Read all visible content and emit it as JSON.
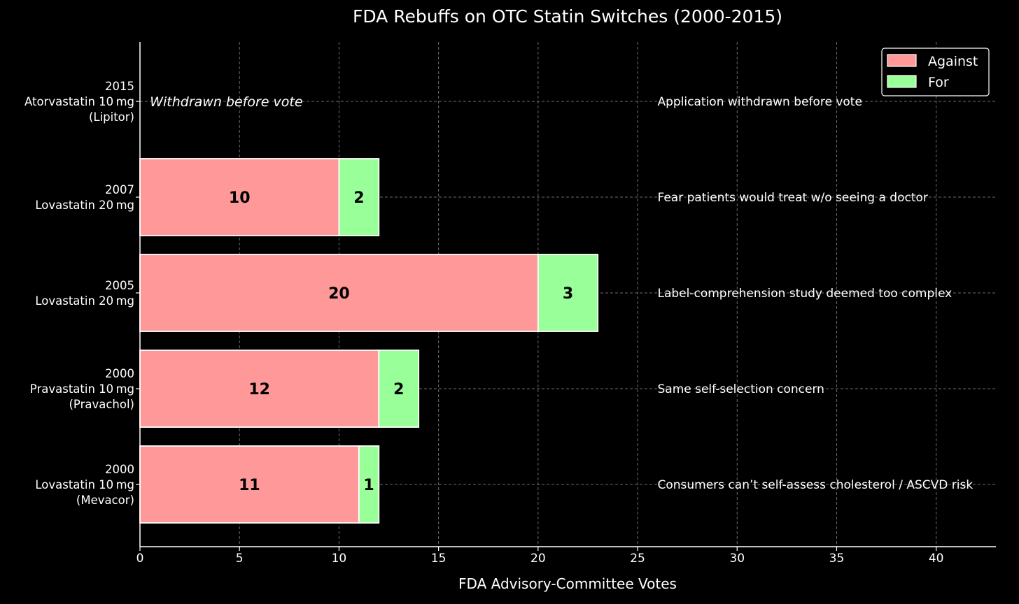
{
  "chart_data": {
    "type": "bar",
    "orientation": "horizontal",
    "stacked": true,
    "title": "FDA Rebuffs on OTC Statin Switches (2000-2015)",
    "xlabel": "FDA Advisory-Committee Votes",
    "ylabel": "",
    "xlim": [
      0,
      43
    ],
    "xticks": [
      0,
      5,
      10,
      15,
      20,
      25,
      30,
      35,
      40
    ],
    "grid": true,
    "legend_position": "top-right",
    "categories": [
      {
        "lines": [
          "2000",
          "Lovastatin 10 mg",
          "(Mevacor)"
        ]
      },
      {
        "lines": [
          "2000",
          "Pravastatin 10 mg",
          "(Pravachol)"
        ]
      },
      {
        "lines": [
          "2005",
          "Lovastatin 20 mg"
        ]
      },
      {
        "lines": [
          "2007",
          "Lovastatin 20 mg"
        ]
      },
      {
        "lines": [
          "2015",
          "Atorvastatin 10 mg",
          "(Lipitor)"
        ]
      }
    ],
    "series": [
      {
        "name": "Against",
        "color": "#ff9999",
        "values": [
          11,
          12,
          20,
          10,
          0
        ]
      },
      {
        "name": "For",
        "color": "#99ff99",
        "values": [
          1,
          2,
          3,
          2,
          0
        ]
      }
    ],
    "annotations": [
      "Consumers can’t self-assess cholesterol / ASCVD risk",
      "Same self-selection concern",
      "Label-comprehension study deemed too complex",
      "Fear patients would treat w/o seeing a doctor",
      "Application withdrawn before vote"
    ],
    "annotation_x": 26,
    "special_notes": [
      {
        "category_index": 4,
        "x": 0.5,
        "text": "Withdrawn before vote"
      }
    ]
  }
}
